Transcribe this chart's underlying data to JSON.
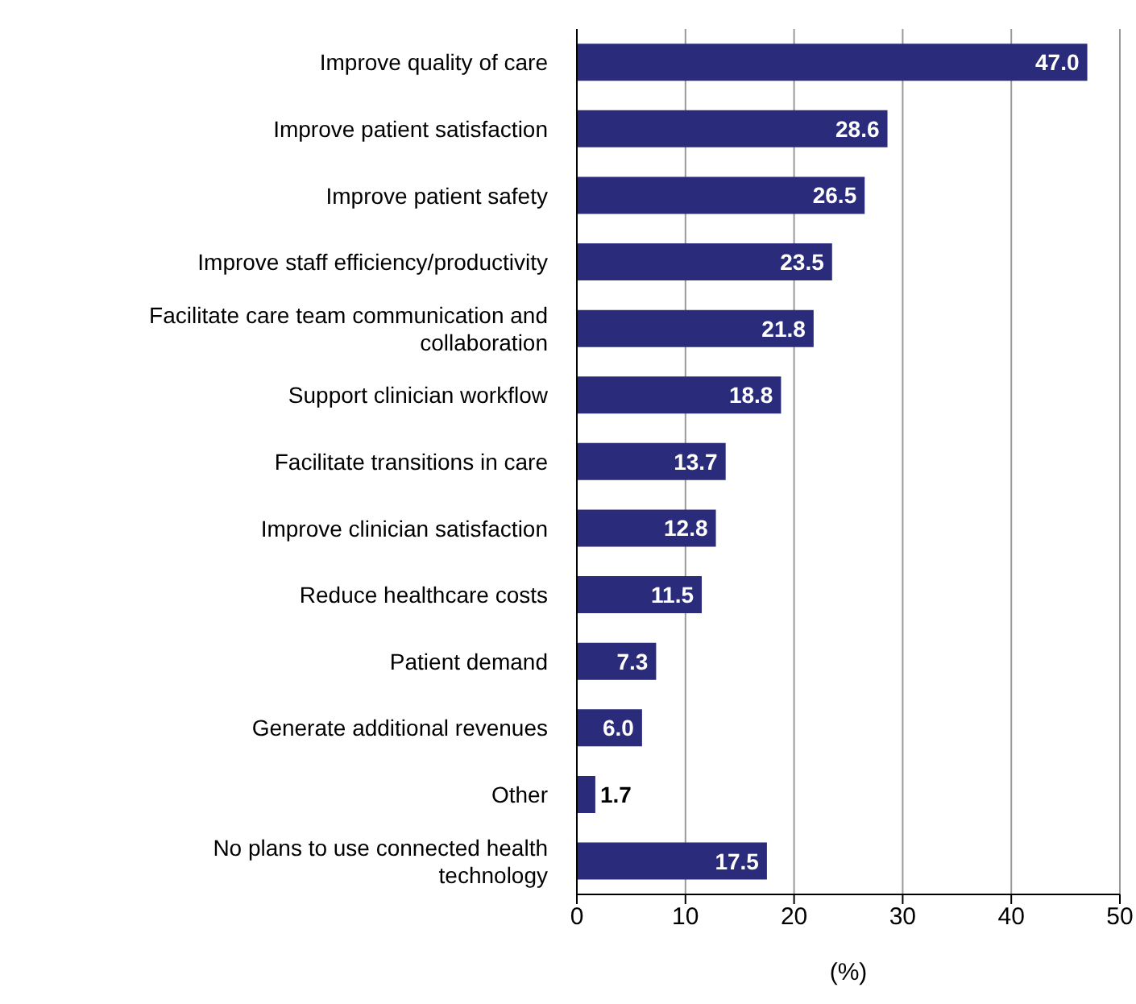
{
  "chart_data": {
    "type": "bar",
    "orientation": "horizontal",
    "xlabel": "(%)",
    "categories": [
      "Improve quality of care",
      "Improve patient satisfaction",
      "Improve patient safety",
      "Improve staff efficiency/productivity",
      "Facilitate care team communication and collaboration",
      "Support clinician workflow",
      "Facilitate transitions in care",
      "Improve clinician satisfaction",
      "Reduce healthcare costs",
      "Patient demand",
      "Generate additional revenues",
      "Other",
      "No plans to use connected health technology"
    ],
    "values": [
      47.0,
      28.6,
      26.5,
      23.5,
      21.8,
      18.8,
      13.7,
      12.8,
      11.5,
      7.3,
      6.0,
      1.7,
      17.5
    ],
    "color": "#2b2b7c",
    "xlim": [
      0,
      50
    ],
    "xticks": [
      0,
      10,
      20,
      30,
      40,
      50
    ],
    "grid": "x",
    "value_labels": [
      "47.0",
      "28.6",
      "26.5",
      "23.5",
      "21.8",
      "18.8",
      "13.7",
      "12.8",
      "11.5",
      "7.3",
      "6.0",
      "1.7",
      "17.5"
    ]
  }
}
